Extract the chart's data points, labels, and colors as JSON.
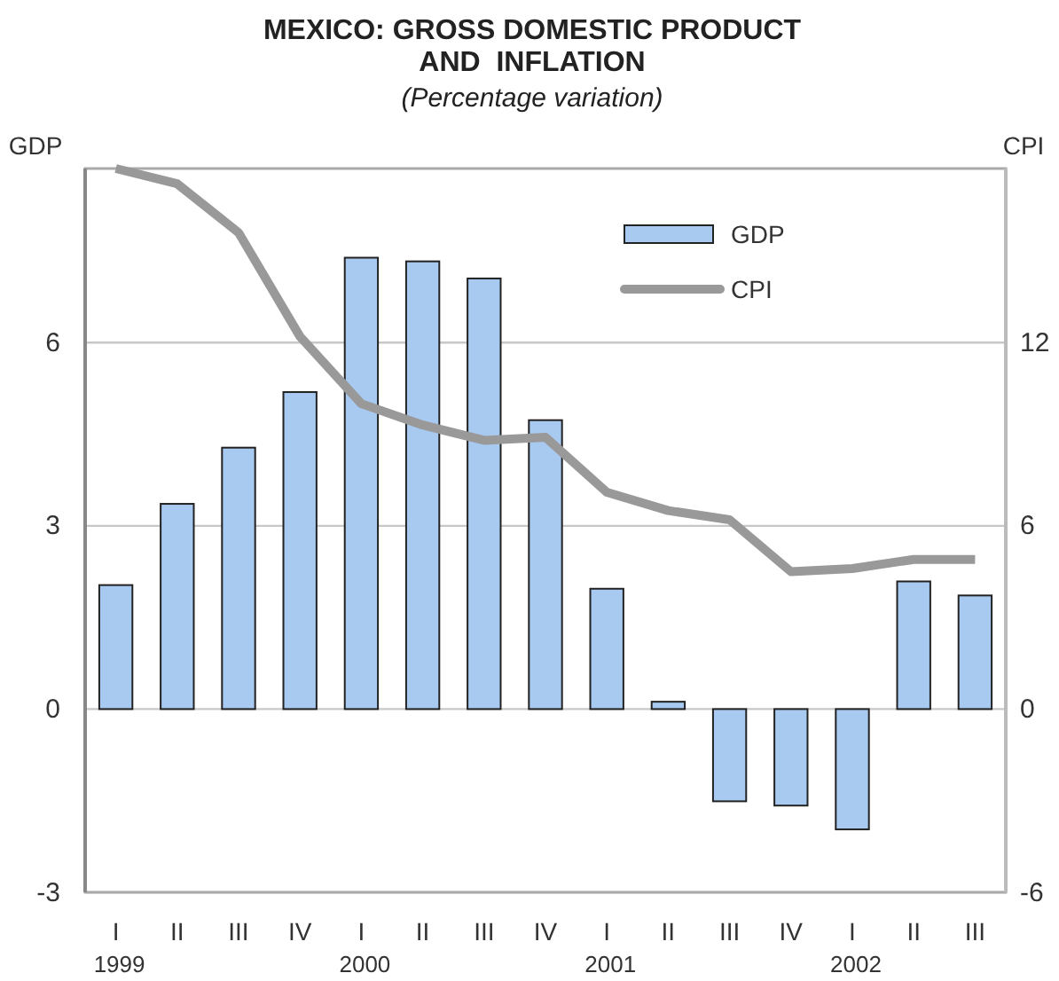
{
  "chart_data": {
    "type": "bar",
    "title": "MEXICO: GROSS DOMESTIC PRODUCT\nAND  INFLATION",
    "subtitle": "(Percentage variation)",
    "ylabel": "GDP",
    "y2label": "CPI",
    "categories": [
      "I\n1999",
      "II",
      "III",
      "IV",
      "I\n2000",
      "II",
      "III",
      "IV",
      "I\n2001",
      "II",
      "III",
      "IV",
      "I\n2002",
      "II",
      "III"
    ],
    "series": [
      {
        "name": "GDP",
        "color": "#a9caf0",
        "values": [
          2.03,
          3.36,
          4.28,
          5.19,
          7.39,
          7.33,
          7.05,
          4.73,
          1.97,
          0.12,
          -1.51,
          -1.58,
          -1.97,
          2.09,
          1.86
        ]
      },
      {
        "name": "CPI",
        "type": "line",
        "axis": "y2",
        "color": "#999999",
        "values": [
          17.7,
          17.2,
          15.6,
          12.2,
          10.0,
          9.3,
          8.8,
          8.9,
          7.1,
          6.5,
          6.2,
          4.5,
          4.6,
          4.9,
          4.9
        ]
      }
    ],
    "ylim": [
      -3,
      8.85
    ],
    "yticks": [
      -3,
      0,
      3,
      6
    ],
    "y2lim": [
      -6,
      17.7
    ],
    "y2ticks": [
      -6,
      0,
      6,
      12
    ],
    "grid": "y",
    "legend": "top right",
    "line_style": "solid",
    "marker": "none"
  }
}
